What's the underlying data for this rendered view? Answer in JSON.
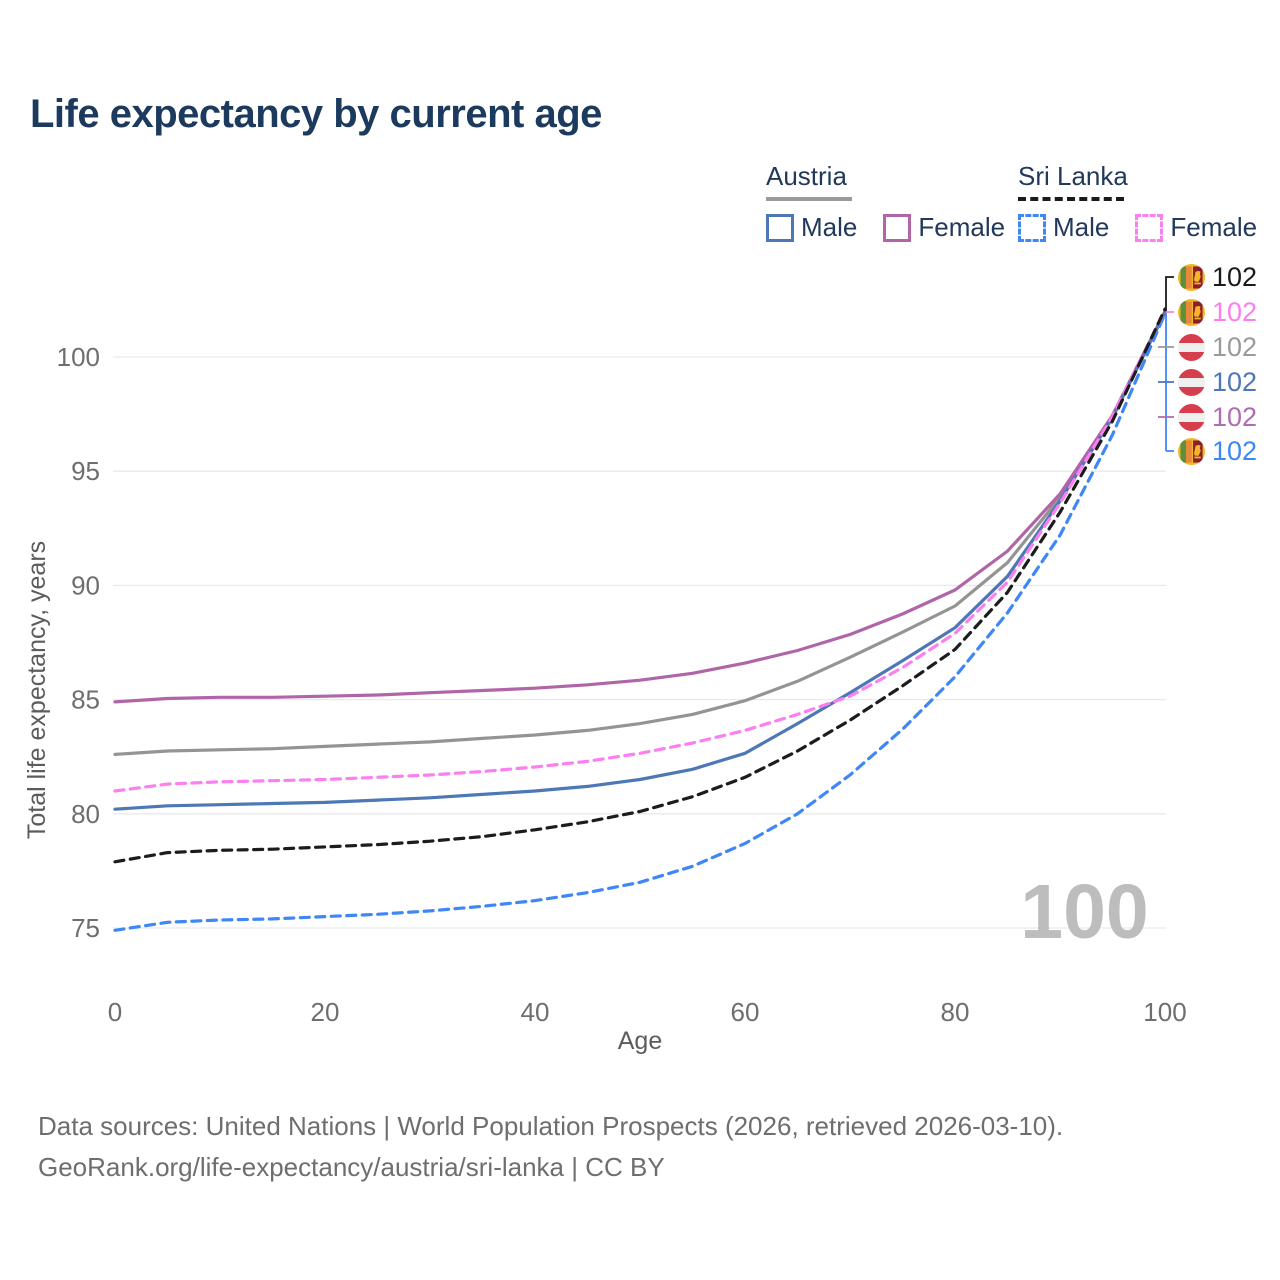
{
  "title": "Life expectancy by current age",
  "legend": {
    "groups": [
      {
        "name": "Austria",
        "line_style": "solid",
        "items": [
          {
            "label": "Male",
            "series_id": "austria-male",
            "color": "#4d77b5"
          },
          {
            "label": "Female",
            "series_id": "austria-female",
            "color": "#b065a8"
          }
        ]
      },
      {
        "name": "Sri Lanka",
        "line_style": "dashed",
        "items": [
          {
            "label": "Male",
            "series_id": "sri-lanka-male",
            "color": "#3f86f7"
          },
          {
            "label": "Female",
            "series_id": "sri-lanka-female",
            "color": "#fb7ff0"
          }
        ]
      }
    ]
  },
  "chart_data": {
    "type": "line",
    "title": "Life expectancy by current age",
    "xlabel": "Age",
    "ylabel": "Total life expectancy, years",
    "xlim": [
      0,
      100
    ],
    "ylim": [
      73,
      103
    ],
    "xticks": [
      0,
      20,
      40,
      60,
      80,
      100
    ],
    "yticks": [
      75,
      80,
      85,
      90,
      95,
      100
    ],
    "grid": "horizontal-only",
    "legend_position": "top-right",
    "x": [
      0,
      5,
      10,
      15,
      20,
      25,
      30,
      35,
      40,
      45,
      50,
      55,
      60,
      65,
      70,
      75,
      80,
      85,
      90,
      95,
      100
    ],
    "series": [
      {
        "id": "austria-total",
        "name": "Austria Total",
        "country": "Austria",
        "sex": "Both",
        "color": "#949494",
        "dash": false,
        "values": [
          82.6,
          82.75,
          82.8,
          82.85,
          82.95,
          83.05,
          83.15,
          83.3,
          83.45,
          83.65,
          83.95,
          84.35,
          84.95,
          85.8,
          86.85,
          87.95,
          89.1,
          91.0,
          93.85,
          97.4,
          102.0
        ]
      },
      {
        "id": "austria-female",
        "name": "Austria Female",
        "country": "Austria",
        "sex": "Female",
        "color": "#b065a8",
        "dash": false,
        "values": [
          84.9,
          85.05,
          85.1,
          85.1,
          85.15,
          85.2,
          85.3,
          85.4,
          85.5,
          85.65,
          85.85,
          86.15,
          86.6,
          87.15,
          87.85,
          88.75,
          89.8,
          91.5,
          94.0,
          97.45,
          102.0
        ]
      },
      {
        "id": "austria-male",
        "name": "Austria Male",
        "country": "Austria",
        "sex": "Male",
        "color": "#4d77b5",
        "dash": false,
        "values": [
          80.2,
          80.35,
          80.4,
          80.45,
          80.5,
          80.6,
          80.7,
          80.85,
          81.0,
          81.2,
          81.5,
          81.95,
          82.65,
          83.95,
          85.3,
          86.7,
          88.15,
          90.4,
          93.7,
          97.35,
          101.95
        ]
      },
      {
        "id": "sri-lanka-male",
        "name": "Sri Lanka Male",
        "country": "Sri Lanka",
        "sex": "Male",
        "color": "#3f86f7",
        "dash": true,
        "values": [
          74.9,
          75.25,
          75.35,
          75.4,
          75.5,
          75.6,
          75.75,
          75.95,
          76.2,
          76.55,
          77.0,
          77.7,
          78.7,
          80.0,
          81.7,
          83.7,
          86.0,
          88.8,
          92.2,
          96.6,
          101.9
        ]
      },
      {
        "id": "sri-lanka-female",
        "name": "Sri Lanka Female",
        "country": "Sri Lanka",
        "sex": "Female",
        "color": "#fb7ff0",
        "dash": true,
        "values": [
          81.0,
          81.3,
          81.4,
          81.45,
          81.5,
          81.6,
          81.7,
          81.85,
          82.05,
          82.3,
          82.65,
          83.1,
          83.65,
          84.35,
          85.15,
          86.4,
          87.9,
          90.15,
          93.6,
          97.4,
          102.05
        ]
      },
      {
        "id": "sri-lanka-total",
        "name": "Sri Lanka Total",
        "country": "Sri Lanka",
        "sex": "Both",
        "color": "#1c1c1c",
        "dash": true,
        "values": [
          77.9,
          78.3,
          78.4,
          78.45,
          78.55,
          78.65,
          78.8,
          79.0,
          79.3,
          79.65,
          80.1,
          80.75,
          81.6,
          82.75,
          84.1,
          85.6,
          87.2,
          89.7,
          93.2,
          97.2,
          102.1
        ]
      }
    ],
    "end_labels": [
      {
        "flag": "sri-lanka",
        "value": "102",
        "color": "#1a1a1a"
      },
      {
        "flag": "sri-lanka",
        "value": "102",
        "color": "#fb7ff0"
      },
      {
        "flag": "austria",
        "value": "102",
        "color": "#9a9a9a"
      },
      {
        "flag": "austria",
        "value": "102",
        "color": "#4d77b8"
      },
      {
        "flag": "austria",
        "value": "102",
        "color": "#b06cb3"
      },
      {
        "flag": "sri-lanka",
        "value": "102",
        "color": "#3f86f7"
      }
    ]
  },
  "watermark": "100",
  "footer": {
    "line1": "Data sources: United Nations | World Population Prospects (2026, retrieved 2026-03-10).",
    "line2": "GeoRank.org/life-expectancy/austria/sri-lanka | CC BY"
  }
}
